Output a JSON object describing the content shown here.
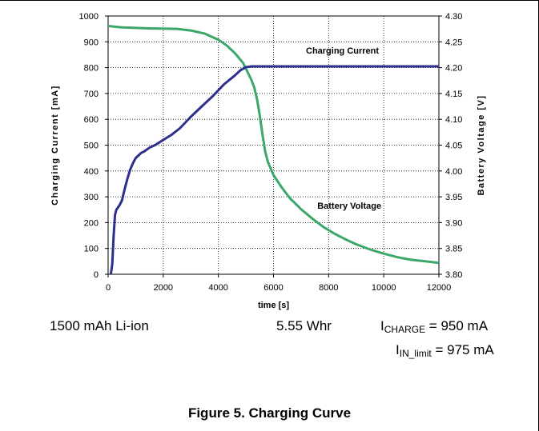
{
  "figure": {
    "battery": "1500 mAh Li-ion",
    "energy": "5.55 Whr",
    "i_charge_main": "I",
    "i_charge_sub": "CHARGE",
    "i_charge_value": " = 950 mA",
    "i_in_main": "I",
    "i_in_sub": "IN_limit",
    "i_in_value": " = 975 mA",
    "caption": "Figure 5. Charging Curve"
  },
  "chart_data": {
    "type": "line",
    "xlabel": "time [s]",
    "ylabel_left": "Charging Current [mA]",
    "ylabel_right": "Battery Voltage [V]",
    "xlim": [
      0,
      12000
    ],
    "ylim_left": [
      0,
      1000
    ],
    "ylim_right": [
      3.8,
      4.3
    ],
    "x_ticks": [
      "0",
      "2000",
      "4000",
      "6000",
      "8000",
      "10000",
      "12000"
    ],
    "y_left_ticks": [
      "0",
      "100",
      "200",
      "300",
      "400",
      "500",
      "600",
      "700",
      "800",
      "900",
      "1000"
    ],
    "y_right_ticks": [
      "3.80",
      "3.85",
      "3.90",
      "3.95",
      "4.00",
      "4.05",
      "4.10",
      "4.15",
      "4.20",
      "4.25",
      "4.30"
    ],
    "grid": true,
    "annotations": [
      {
        "text": "Charging Current",
        "x": 8500,
        "y_right": 4.227
      },
      {
        "text": "Battery Voltage",
        "x": 8750,
        "y_right": 3.927
      }
    ],
    "series": [
      {
        "name": "Charging Current",
        "axis": "right",
        "color": "#3ba86a",
        "x": [
          0,
          100,
          500,
          1500,
          2500,
          3000,
          3500,
          4000,
          4300,
          4600,
          4900,
          5200,
          5300,
          5400,
          5500,
          5600,
          5700,
          5800,
          6000,
          6300,
          6600,
          7000,
          7400,
          7800,
          8200,
          8600,
          9000,
          9500,
          10000,
          10500,
          11000,
          11500,
          12000
        ],
        "y": [
          4.281,
          4.28,
          4.278,
          4.276,
          4.275,
          4.272,
          4.266,
          4.254,
          4.243,
          4.228,
          4.209,
          4.176,
          4.162,
          4.139,
          4.108,
          4.071,
          4.037,
          4.017,
          3.992,
          3.968,
          3.947,
          3.926,
          3.908,
          3.892,
          3.879,
          3.868,
          3.858,
          3.848,
          3.84,
          3.833,
          3.828,
          3.825,
          3.822
        ]
      },
      {
        "name": "Battery Voltage",
        "axis": "left",
        "color": "#2e2f8c",
        "x": [
          100,
          150,
          200,
          250,
          300,
          400,
          500,
          600,
          700,
          800,
          900,
          1000,
          1100,
          1200,
          1300,
          1500,
          1700,
          2000,
          2300,
          2600,
          3000,
          3400,
          3800,
          4200,
          4600,
          4800,
          5000,
          5200,
          5500,
          6000,
          8000,
          10000,
          12000
        ],
        "y": [
          0,
          40,
          150,
          230,
          250,
          265,
          285,
          330,
          370,
          405,
          430,
          450,
          460,
          470,
          475,
          490,
          500,
          520,
          540,
          565,
          610,
          650,
          690,
          735,
          770,
          790,
          802,
          805,
          805,
          805,
          805,
          805,
          805
        ]
      }
    ]
  }
}
